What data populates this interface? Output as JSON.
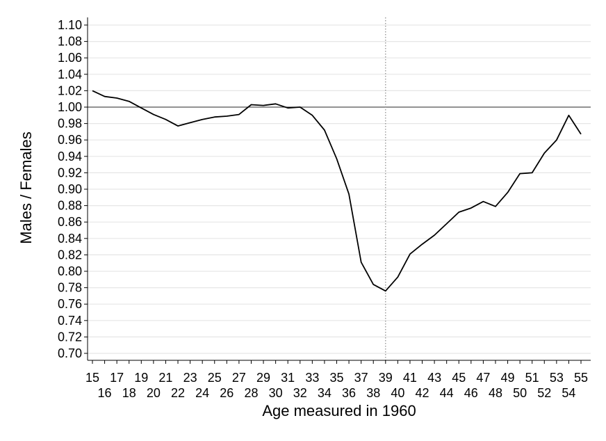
{
  "chart_data": {
    "type": "line",
    "xlabel": "Age measured in 1960",
    "ylabel": "Males / Females",
    "xlim": [
      15,
      55
    ],
    "ylim": [
      0.7,
      1.1
    ],
    "grid": true,
    "reference_line_y": 1.0,
    "reference_line_x": 39,
    "x_ticks": [
      15,
      16,
      17,
      18,
      19,
      20,
      21,
      22,
      23,
      24,
      25,
      26,
      27,
      28,
      29,
      30,
      31,
      32,
      33,
      34,
      35,
      36,
      37,
      38,
      39,
      40,
      41,
      42,
      43,
      44,
      45,
      46,
      47,
      48,
      49,
      50,
      51,
      52,
      53,
      54,
      55
    ],
    "y_ticks": [
      "0.70",
      "0.72",
      "0.74",
      "0.76",
      "0.78",
      "0.80",
      "0.82",
      "0.84",
      "0.86",
      "0.88",
      "0.90",
      "0.92",
      "0.94",
      "0.96",
      "0.98",
      "1.00",
      "1.02",
      "1.04",
      "1.06",
      "1.08",
      "1.10"
    ],
    "series": [
      {
        "color": "#000000",
        "x": [
          15,
          16,
          17,
          18,
          19,
          20,
          21,
          22,
          23,
          24,
          25,
          26,
          27,
          28,
          29,
          30,
          31,
          32,
          33,
          34,
          35,
          36,
          37,
          38,
          39,
          40,
          41,
          42,
          43,
          44,
          45,
          46,
          47,
          48,
          49,
          50,
          51,
          52,
          53,
          54,
          55
        ],
        "y": [
          1.02,
          1.013,
          1.011,
          1.007,
          0.999,
          0.991,
          0.985,
          0.977,
          0.981,
          0.985,
          0.988,
          0.989,
          0.991,
          1.003,
          1.002,
          1.004,
          0.999,
          1.0,
          0.99,
          0.972,
          0.937,
          0.894,
          0.811,
          0.784,
          0.776,
          0.793,
          0.821,
          0.833,
          0.844,
          0.858,
          0.872,
          0.877,
          0.885,
          0.879,
          0.896,
          0.919,
          0.92,
          0.944,
          0.96,
          0.99,
          0.967
        ]
      }
    ]
  }
}
